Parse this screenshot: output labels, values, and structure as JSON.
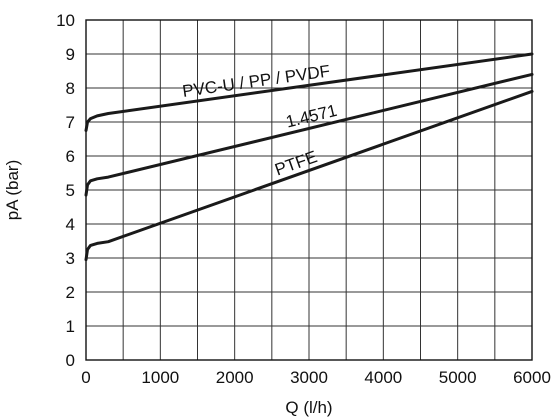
{
  "chart_data": {
    "type": "line",
    "xlabel": "Q (l/h)",
    "ylabel": "pA (bar)",
    "xlim": [
      0,
      6000
    ],
    "ylim": [
      0,
      10
    ],
    "x_ticks": [
      "0",
      "1000",
      "2000",
      "3000",
      "4000",
      "5000",
      "6000"
    ],
    "y_ticks": [
      "0",
      "1",
      "2",
      "3",
      "4",
      "5",
      "6",
      "7",
      "8",
      "9",
      "10"
    ],
    "grid": true,
    "series": [
      {
        "name": "PVC-U / PP / PVDF",
        "x": [
          0,
          20,
          60,
          150,
          300,
          6000
        ],
        "y": [
          6.75,
          7.0,
          7.1,
          7.18,
          7.25,
          9.0
        ]
      },
      {
        "name": "1.4571",
        "x": [
          0,
          20,
          60,
          150,
          300,
          6000
        ],
        "y": [
          4.85,
          5.15,
          5.27,
          5.33,
          5.38,
          8.4
        ]
      },
      {
        "name": "PTFE",
        "x": [
          0,
          20,
          60,
          150,
          300,
          6000
        ],
        "y": [
          2.95,
          3.25,
          3.37,
          3.43,
          3.48,
          7.9
        ]
      }
    ]
  }
}
